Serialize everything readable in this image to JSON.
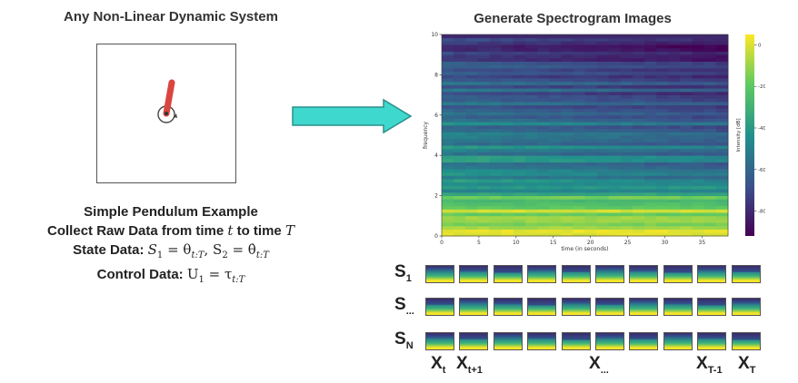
{
  "left": {
    "title": "Any Non-Linear Dynamic System",
    "example_title": "Simple Pendulum Example",
    "collect_prefix": "Collect Raw Data from time ",
    "collect_t": "t",
    "collect_mid": " to time ",
    "collect_T": "T",
    "state_label": "State Data: ",
    "state_s1": "S",
    "state_s1_sub": "1",
    "state_eq1": " = θ",
    "state_eq1_sub": "t:T",
    "state_sep": ",  S",
    "state_s2_sub": "2",
    "state_eq2": " = θ̇",
    "state_eq2_sub": "t:T",
    "control_label": "Control Data: ",
    "control_u": "U",
    "control_u_sub": "1",
    "control_eq": " = τ",
    "control_eq_sub": "t:T"
  },
  "right": {
    "title": "Generate Spectrogram Images"
  },
  "colors": {
    "arrow_fill": "#3fd8cf",
    "arrow_stroke": "#2a8f8a",
    "pendulum_rod": "#d9453f"
  },
  "chart_data": {
    "type": "heatmap",
    "title": "",
    "xlabel": "time (in seconds)",
    "ylabel": "frequency",
    "xlim": [
      0,
      38.5
    ],
    "ylim": [
      0,
      10
    ],
    "xticks": [
      "0",
      "5",
      "10",
      "15",
      "20",
      "25",
      "30",
      "35"
    ],
    "yticks": [
      "0",
      "2",
      "4",
      "6",
      "8",
      "10"
    ],
    "colorbar_label": "Intensity [dB]",
    "colorbar_range": [
      -92,
      5
    ],
    "colorbar_ticks": [
      "0",
      "-20",
      "-40",
      "-60",
      "-80"
    ],
    "colormap": "viridis"
  },
  "grid": {
    "rows": [
      {
        "label": "S",
        "sub": "1"
      },
      {
        "label": "S",
        "sub": "..."
      },
      {
        "label": "S",
        "sub": "N"
      }
    ],
    "columns": [
      {
        "label": "X",
        "sub": "t"
      },
      {
        "label": "X",
        "sub": "t+1"
      },
      {
        "label": "X",
        "sub": "..."
      },
      {
        "label": "X",
        "sub": "T-1"
      },
      {
        "label": "X",
        "sub": "T"
      }
    ],
    "tiles_per_row": 10
  }
}
